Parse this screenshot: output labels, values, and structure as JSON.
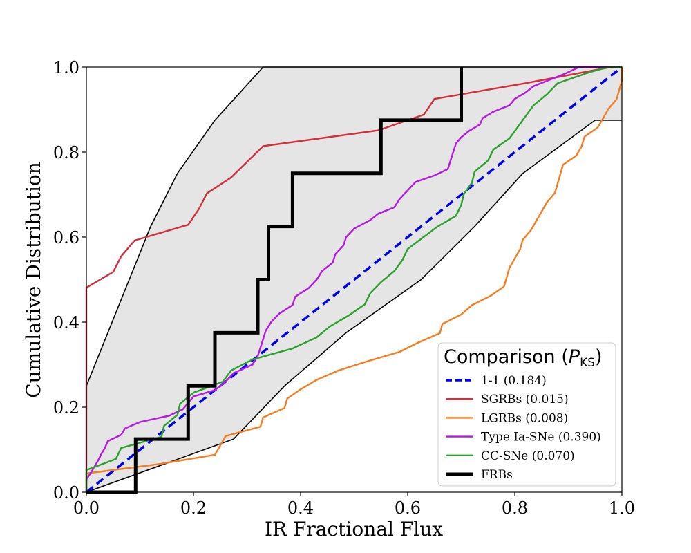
{
  "chart_data": {
    "type": "line",
    "title": "",
    "xlabel": "IR Fractional Flux",
    "ylabel": "Cumulative Distribution",
    "xlim": [
      0.0,
      1.0
    ],
    "ylim": [
      0.0,
      1.0
    ],
    "xticks": [
      "0.0",
      "0.2",
      "0.4",
      "0.6",
      "0.8",
      "1.0"
    ],
    "yticks": [
      "0.0",
      "0.2",
      "0.4",
      "0.6",
      "0.8",
      "1.0"
    ],
    "grid": false,
    "legend_title_text": "Comparison (",
    "legend_title_symbol": "P",
    "legend_title_subscript": "KS",
    "legend_title_close": ")",
    "legend_location": "lower-right",
    "confidence_band": {
      "fill_color": "#e5e5e5",
      "edge_color": "#000000",
      "upper": [
        [
          0.0,
          0.25
        ],
        [
          0.04,
          0.375
        ],
        [
          0.08,
          0.5
        ],
        [
          0.12,
          0.625
        ],
        [
          0.17,
          0.75
        ],
        [
          0.24,
          0.875
        ],
        [
          0.33,
          1.0
        ],
        [
          1.0,
          1.0
        ]
      ],
      "lower": [
        [
          0.0,
          0.0
        ],
        [
          0.275,
          0.125
        ],
        [
          0.37,
          0.25
        ],
        [
          0.485,
          0.375
        ],
        [
          0.625,
          0.5
        ],
        [
          0.725,
          0.625
        ],
        [
          0.815,
          0.75
        ],
        [
          0.95,
          0.875
        ],
        [
          1.0,
          0.875
        ]
      ]
    },
    "series": [
      {
        "name": "1-1",
        "legend": "1-1 (0.184)",
        "color": "#0000ee",
        "style": "dashed",
        "points": [
          [
            0.0,
            0.0
          ],
          [
            1.0,
            1.0
          ]
        ]
      },
      {
        "name": "SGRBs",
        "legend": "SGRBs (0.015)",
        "color": "#d62d3c",
        "style": "step",
        "points": [
          [
            0.0,
            0.0
          ],
          [
            0.0,
            0.481
          ],
          [
            0.05,
            0.518
          ],
          [
            0.065,
            0.555
          ],
          [
            0.09,
            0.592
          ],
          [
            0.19,
            0.629
          ],
          [
            0.21,
            0.666
          ],
          [
            0.225,
            0.703
          ],
          [
            0.27,
            0.74
          ],
          [
            0.3,
            0.777
          ],
          [
            0.33,
            0.814
          ],
          [
            0.545,
            0.851
          ],
          [
            0.63,
            0.888
          ],
          [
            0.65,
            0.925
          ],
          [
            0.82,
            0.962
          ],
          [
            0.98,
            1.0
          ],
          [
            1.0,
            1.0
          ]
        ]
      },
      {
        "name": "LGRBs",
        "legend": "LGRBs (0.008)",
        "color": "#f57c1f",
        "style": "step",
        "points": [
          [
            0.0,
            0.0
          ],
          [
            0.0,
            0.044
          ],
          [
            0.135,
            0.066
          ],
          [
            0.24,
            0.088
          ],
          [
            0.25,
            0.11
          ],
          [
            0.26,
            0.132
          ],
          [
            0.325,
            0.154
          ],
          [
            0.33,
            0.176
          ],
          [
            0.37,
            0.198
          ],
          [
            0.375,
            0.22
          ],
          [
            0.4,
            0.242
          ],
          [
            0.43,
            0.264
          ],
          [
            0.47,
            0.286
          ],
          [
            0.525,
            0.308
          ],
          [
            0.585,
            0.33
          ],
          [
            0.62,
            0.352
          ],
          [
            0.66,
            0.374
          ],
          [
            0.665,
            0.396
          ],
          [
            0.7,
            0.418
          ],
          [
            0.72,
            0.44
          ],
          [
            0.755,
            0.462
          ],
          [
            0.78,
            0.484
          ],
          [
            0.785,
            0.506
          ],
          [
            0.79,
            0.528
          ],
          [
            0.8,
            0.55
          ],
          [
            0.81,
            0.572
          ],
          [
            0.815,
            0.594
          ],
          [
            0.83,
            0.616
          ],
          [
            0.84,
            0.638
          ],
          [
            0.85,
            0.66
          ],
          [
            0.86,
            0.682
          ],
          [
            0.875,
            0.704
          ],
          [
            0.88,
            0.726
          ],
          [
            0.885,
            0.748
          ],
          [
            0.89,
            0.77
          ],
          [
            0.915,
            0.792
          ],
          [
            0.925,
            0.814
          ],
          [
            0.93,
            0.836
          ],
          [
            0.955,
            0.858
          ],
          [
            0.965,
            0.88
          ],
          [
            0.975,
            0.902
          ],
          [
            0.99,
            0.924
          ],
          [
            0.995,
            0.946
          ],
          [
            1.0,
            0.968
          ],
          [
            1.0,
            1.0
          ]
        ]
      },
      {
        "name": "Type Ia-SNe",
        "legend": "Type Ia-SNe (0.390)",
        "color": "#b519e8",
        "style": "step",
        "points": [
          [
            0.0,
            0.0
          ],
          [
            0.0,
            0.03
          ],
          [
            0.008,
            0.045
          ],
          [
            0.015,
            0.06
          ],
          [
            0.022,
            0.075
          ],
          [
            0.028,
            0.09
          ],
          [
            0.035,
            0.105
          ],
          [
            0.04,
            0.12
          ],
          [
            0.065,
            0.135
          ],
          [
            0.072,
            0.15
          ],
          [
            0.1,
            0.165
          ],
          [
            0.155,
            0.18
          ],
          [
            0.18,
            0.195
          ],
          [
            0.19,
            0.21
          ],
          [
            0.2,
            0.225
          ],
          [
            0.24,
            0.24
          ],
          [
            0.26,
            0.26
          ],
          [
            0.275,
            0.28
          ],
          [
            0.31,
            0.3
          ],
          [
            0.32,
            0.32
          ],
          [
            0.325,
            0.34
          ],
          [
            0.33,
            0.36
          ],
          [
            0.335,
            0.38
          ],
          [
            0.345,
            0.4
          ],
          [
            0.36,
            0.42
          ],
          [
            0.385,
            0.44
          ],
          [
            0.39,
            0.46
          ],
          [
            0.415,
            0.48
          ],
          [
            0.43,
            0.5
          ],
          [
            0.44,
            0.52
          ],
          [
            0.46,
            0.54
          ],
          [
            0.465,
            0.56
          ],
          [
            0.48,
            0.58
          ],
          [
            0.485,
            0.6
          ],
          [
            0.5,
            0.62
          ],
          [
            0.53,
            0.64
          ],
          [
            0.545,
            0.655
          ],
          [
            0.575,
            0.67
          ],
          [
            0.585,
            0.69
          ],
          [
            0.6,
            0.71
          ],
          [
            0.615,
            0.73
          ],
          [
            0.65,
            0.745
          ],
          [
            0.675,
            0.76
          ],
          [
            0.68,
            0.78
          ],
          [
            0.685,
            0.8
          ],
          [
            0.69,
            0.82
          ],
          [
            0.7,
            0.835
          ],
          [
            0.715,
            0.85
          ],
          [
            0.735,
            0.865
          ],
          [
            0.74,
            0.88
          ],
          [
            0.76,
            0.895
          ],
          [
            0.79,
            0.91
          ],
          [
            0.8,
            0.925
          ],
          [
            0.82,
            0.94
          ],
          [
            0.835,
            0.955
          ],
          [
            0.865,
            0.97
          ],
          [
            0.895,
            0.985
          ],
          [
            0.92,
            1.0
          ],
          [
            1.0,
            1.0
          ]
        ]
      },
      {
        "name": "CC-SNe",
        "legend": "CC-SNe (0.070)",
        "color": "#2ca02c",
        "style": "step",
        "points": [
          [
            0.0,
            0.0
          ],
          [
            0.0,
            0.052
          ],
          [
            0.055,
            0.078
          ],
          [
            0.065,
            0.104
          ],
          [
            0.14,
            0.13
          ],
          [
            0.145,
            0.156
          ],
          [
            0.17,
            0.182
          ],
          [
            0.175,
            0.208
          ],
          [
            0.2,
            0.234
          ],
          [
            0.255,
            0.26
          ],
          [
            0.27,
            0.286
          ],
          [
            0.31,
            0.312
          ],
          [
            0.385,
            0.338
          ],
          [
            0.43,
            0.364
          ],
          [
            0.455,
            0.39
          ],
          [
            0.49,
            0.416
          ],
          [
            0.52,
            0.442
          ],
          [
            0.53,
            0.468
          ],
          [
            0.55,
            0.494
          ],
          [
            0.575,
            0.52
          ],
          [
            0.59,
            0.546
          ],
          [
            0.6,
            0.572
          ],
          [
            0.655,
            0.624
          ],
          [
            0.69,
            0.65
          ],
          [
            0.7,
            0.676
          ],
          [
            0.705,
            0.702
          ],
          [
            0.72,
            0.728
          ],
          [
            0.725,
            0.754
          ],
          [
            0.75,
            0.78
          ],
          [
            0.76,
            0.806
          ],
          [
            0.79,
            0.832
          ],
          [
            0.805,
            0.858
          ],
          [
            0.82,
            0.884
          ],
          [
            0.835,
            0.91
          ],
          [
            0.86,
            0.936
          ],
          [
            0.88,
            0.962
          ],
          [
            0.94,
            0.988
          ],
          [
            0.975,
            1.0
          ],
          [
            1.0,
            1.0
          ]
        ]
      },
      {
        "name": "FRBs",
        "legend": "FRBs",
        "color": "#000000",
        "style": "step-thick",
        "points": [
          [
            0.0,
            0.0
          ],
          [
            0.092,
            0.0
          ],
          [
            0.092,
            0.125
          ],
          [
            0.19,
            0.125
          ],
          [
            0.19,
            0.25
          ],
          [
            0.24,
            0.25
          ],
          [
            0.24,
            0.375
          ],
          [
            0.32,
            0.375
          ],
          [
            0.32,
            0.5
          ],
          [
            0.34,
            0.5
          ],
          [
            0.34,
            0.625
          ],
          [
            0.385,
            0.625
          ],
          [
            0.385,
            0.75
          ],
          [
            0.55,
            0.75
          ],
          [
            0.55,
            0.875
          ],
          [
            0.7,
            0.875
          ],
          [
            0.7,
            1.0
          ]
        ]
      }
    ]
  }
}
